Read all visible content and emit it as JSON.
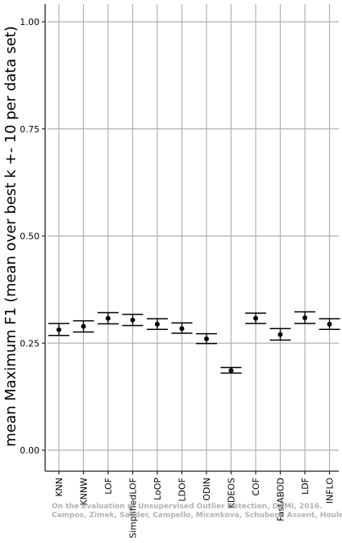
{
  "chart_data": {
    "type": "errorbar",
    "ylabel": "mean Maximum F1 (mean over best k +- 10 per data set)",
    "xlabel": "",
    "ylim": [
      -0.05,
      1.05
    ],
    "yticks": [
      0.0,
      0.25,
      0.5,
      0.75,
      1.0
    ],
    "ytick_labels": [
      "0.00",
      "0.25",
      "0.50",
      "0.75",
      "1.00"
    ],
    "grid": true,
    "categories": [
      "KNN",
      "KNNW",
      "LOF",
      "SimplifiedLOF",
      "LoOP",
      "LDOF",
      "ODIN",
      "KDEOS",
      "COF",
      "FastABOD",
      "LDF",
      "INFLO"
    ],
    "mean": [
      0.281,
      0.289,
      0.308,
      0.304,
      0.294,
      0.284,
      0.26,
      0.186,
      0.308,
      0.27,
      0.309,
      0.294
    ],
    "upper": [
      0.296,
      0.302,
      0.321,
      0.317,
      0.307,
      0.297,
      0.272,
      0.193,
      0.32,
      0.284,
      0.323,
      0.307
    ],
    "lower": [
      0.268,
      0.276,
      0.295,
      0.291,
      0.282,
      0.273,
      0.249,
      0.18,
      0.296,
      0.257,
      0.296,
      0.282
    ]
  },
  "watermark": {
    "line1": "On the Evaluation of Unsupervised Outlier Detection, DAMI, 2016.",
    "line2": "Campos, Zimek, Sander, Campello, Micenková, Schubert, Assent, Houle"
  }
}
